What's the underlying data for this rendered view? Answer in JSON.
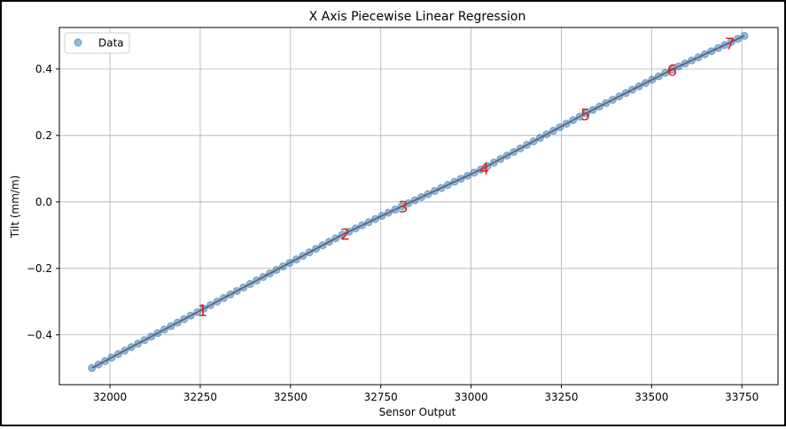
{
  "chart_data": {
    "type": "scatter",
    "title": "X Axis Piecewise Linear Regression",
    "xlabel": "Sensor Output",
    "ylabel": "Tilt (mm/m)",
    "xlim": [
      31860,
      33850
    ],
    "ylim": [
      -0.55,
      0.525
    ],
    "xticks": [
      32000,
      32250,
      32500,
      32750,
      33000,
      33250,
      33500,
      33750
    ],
    "yticks": [
      -0.4,
      -0.2,
      0.0,
      0.2,
      0.4
    ],
    "xtick_labels": [
      "32000",
      "32250",
      "32500",
      "32750",
      "33000",
      "33250",
      "33500",
      "33750"
    ],
    "ytick_labels": [
      "−0.4",
      "−0.2",
      "0.0",
      "0.2",
      "0.4"
    ],
    "grid": true,
    "legend": {
      "position": "top-left",
      "entries": [
        {
          "label": "Data",
          "color": "#1f77b4"
        }
      ]
    },
    "series": [
      {
        "name": "Data",
        "kind": "scatter",
        "color": "#1f77b4",
        "x_start": 31950,
        "x_end": 33757,
        "count": 100,
        "y_start": -0.5,
        "y_end": 0.5
      }
    ],
    "fit": {
      "color": "#d62728",
      "breakpoints": [
        {
          "x": 31950,
          "y": -0.5
        },
        {
          "x": 32250,
          "y": -0.327
        },
        {
          "x": 32645,
          "y": -0.098
        },
        {
          "x": 32805,
          "y": -0.015
        },
        {
          "x": 33030,
          "y": 0.099
        },
        {
          "x": 33310,
          "y": 0.262
        },
        {
          "x": 33550,
          "y": 0.395
        },
        {
          "x": 33757,
          "y": 0.5
        }
      ]
    },
    "annotations": [
      {
        "label": "1",
        "x": 32250,
        "y": -0.327
      },
      {
        "label": "2",
        "x": 32645,
        "y": -0.098
      },
      {
        "label": "3",
        "x": 32805,
        "y": -0.015
      },
      {
        "label": "4",
        "x": 33030,
        "y": 0.099
      },
      {
        "label": "5",
        "x": 33310,
        "y": 0.262
      },
      {
        "label": "6",
        "x": 33550,
        "y": 0.395
      },
      {
        "label": "7",
        "x": 33710,
        "y": 0.475
      }
    ]
  }
}
